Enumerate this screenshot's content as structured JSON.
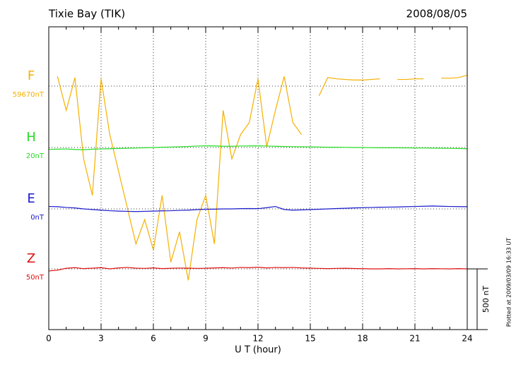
{
  "chart_data": {
    "type": "line",
    "title": "Tixie Bay (TIK)",
    "date": "2008/08/05",
    "x_label": "U T (hour)",
    "footnote": "Plotted at 2009/03/09 16:33 UT",
    "xlim": [
      0,
      24
    ],
    "xticks": [
      0,
      3,
      6,
      9,
      12,
      15,
      18,
      21,
      24
    ],
    "grid": true,
    "scale_bar": {
      "value": 500,
      "label": "500 nT"
    },
    "x": [
      0,
      0.5,
      1,
      1.5,
      2,
      2.5,
      3,
      3.5,
      4,
      4.5,
      5,
      5.5,
      6,
      6.5,
      7,
      7.5,
      8,
      8.5,
      9,
      9.5,
      10,
      10.5,
      11,
      11.5,
      12,
      12.5,
      13,
      13.5,
      14,
      14.5,
      15,
      15.5,
      16,
      16.5,
      17,
      17.5,
      18,
      18.5,
      19,
      19.5,
      20,
      20.5,
      21,
      21.5,
      22,
      22.5,
      23,
      23.5,
      24
    ],
    "series": [
      {
        "name": "F",
        "color": "#f5b000",
        "baseline": {
          "value": 59670,
          "label": "59670nT"
        },
        "values": [
          null,
          59750,
          59470,
          59740,
          59070,
          58770,
          59730,
          59270,
          58970,
          58670,
          58370,
          58570,
          58320,
          58770,
          58220,
          58470,
          58070,
          58570,
          58770,
          58370,
          59470,
          59070,
          59270,
          59370,
          59730,
          59170,
          59470,
          59750,
          59370,
          59270,
          null,
          59590,
          59740,
          59730,
          59725,
          59720,
          59720,
          59725,
          59730,
          null,
          59725,
          59725,
          59730,
          59730,
          null,
          59735,
          59735,
          59740,
          59760
        ]
      },
      {
        "name": "H",
        "color": "#22dd22",
        "baseline": {
          "value": 20,
          "label": "20nT"
        },
        "values": [
          5,
          6,
          8,
          4,
          2,
          6,
          8,
          10,
          12,
          14,
          16,
          18,
          20,
          22,
          24,
          26,
          28,
          32,
          34,
          33,
          30,
          30,
          32,
          33,
          34,
          32,
          30,
          28,
          27,
          26,
          25,
          24,
          22,
          22,
          21,
          20,
          20,
          19,
          18,
          18,
          18,
          17,
          16,
          16,
          15,
          14,
          13,
          12,
          10
        ]
      },
      {
        "name": "E",
        "color": "#1a1acc",
        "baseline": {
          "value": 0,
          "label": "0nT"
        },
        "values": [
          20,
          18,
          12,
          8,
          0,
          -5,
          -10,
          -15,
          -18,
          -20,
          -22,
          -20,
          -18,
          -16,
          -15,
          -12,
          -10,
          -6,
          -3,
          -2,
          0,
          0,
          2,
          3,
          2,
          10,
          20,
          -5,
          -10,
          -8,
          -5,
          -3,
          0,
          3,
          5,
          8,
          10,
          12,
          14,
          15,
          16,
          18,
          20,
          22,
          24,
          22,
          20,
          19,
          18
        ]
      },
      {
        "name": "Z",
        "color": "#dd1111",
        "baseline": {
          "value": 50,
          "label": "50nT"
        },
        "values": [
          33,
          40,
          55,
          60,
          52,
          56,
          60,
          50,
          58,
          62,
          56,
          54,
          58,
          52,
          55,
          57,
          56,
          54,
          55,
          58,
          60,
          57,
          62,
          60,
          64,
          58,
          62,
          60,
          62,
          58,
          56,
          54,
          52,
          54,
          55,
          53,
          52,
          50,
          50,
          52,
          50,
          51,
          52,
          50,
          52,
          51,
          50,
          52,
          50
        ]
      }
    ]
  }
}
